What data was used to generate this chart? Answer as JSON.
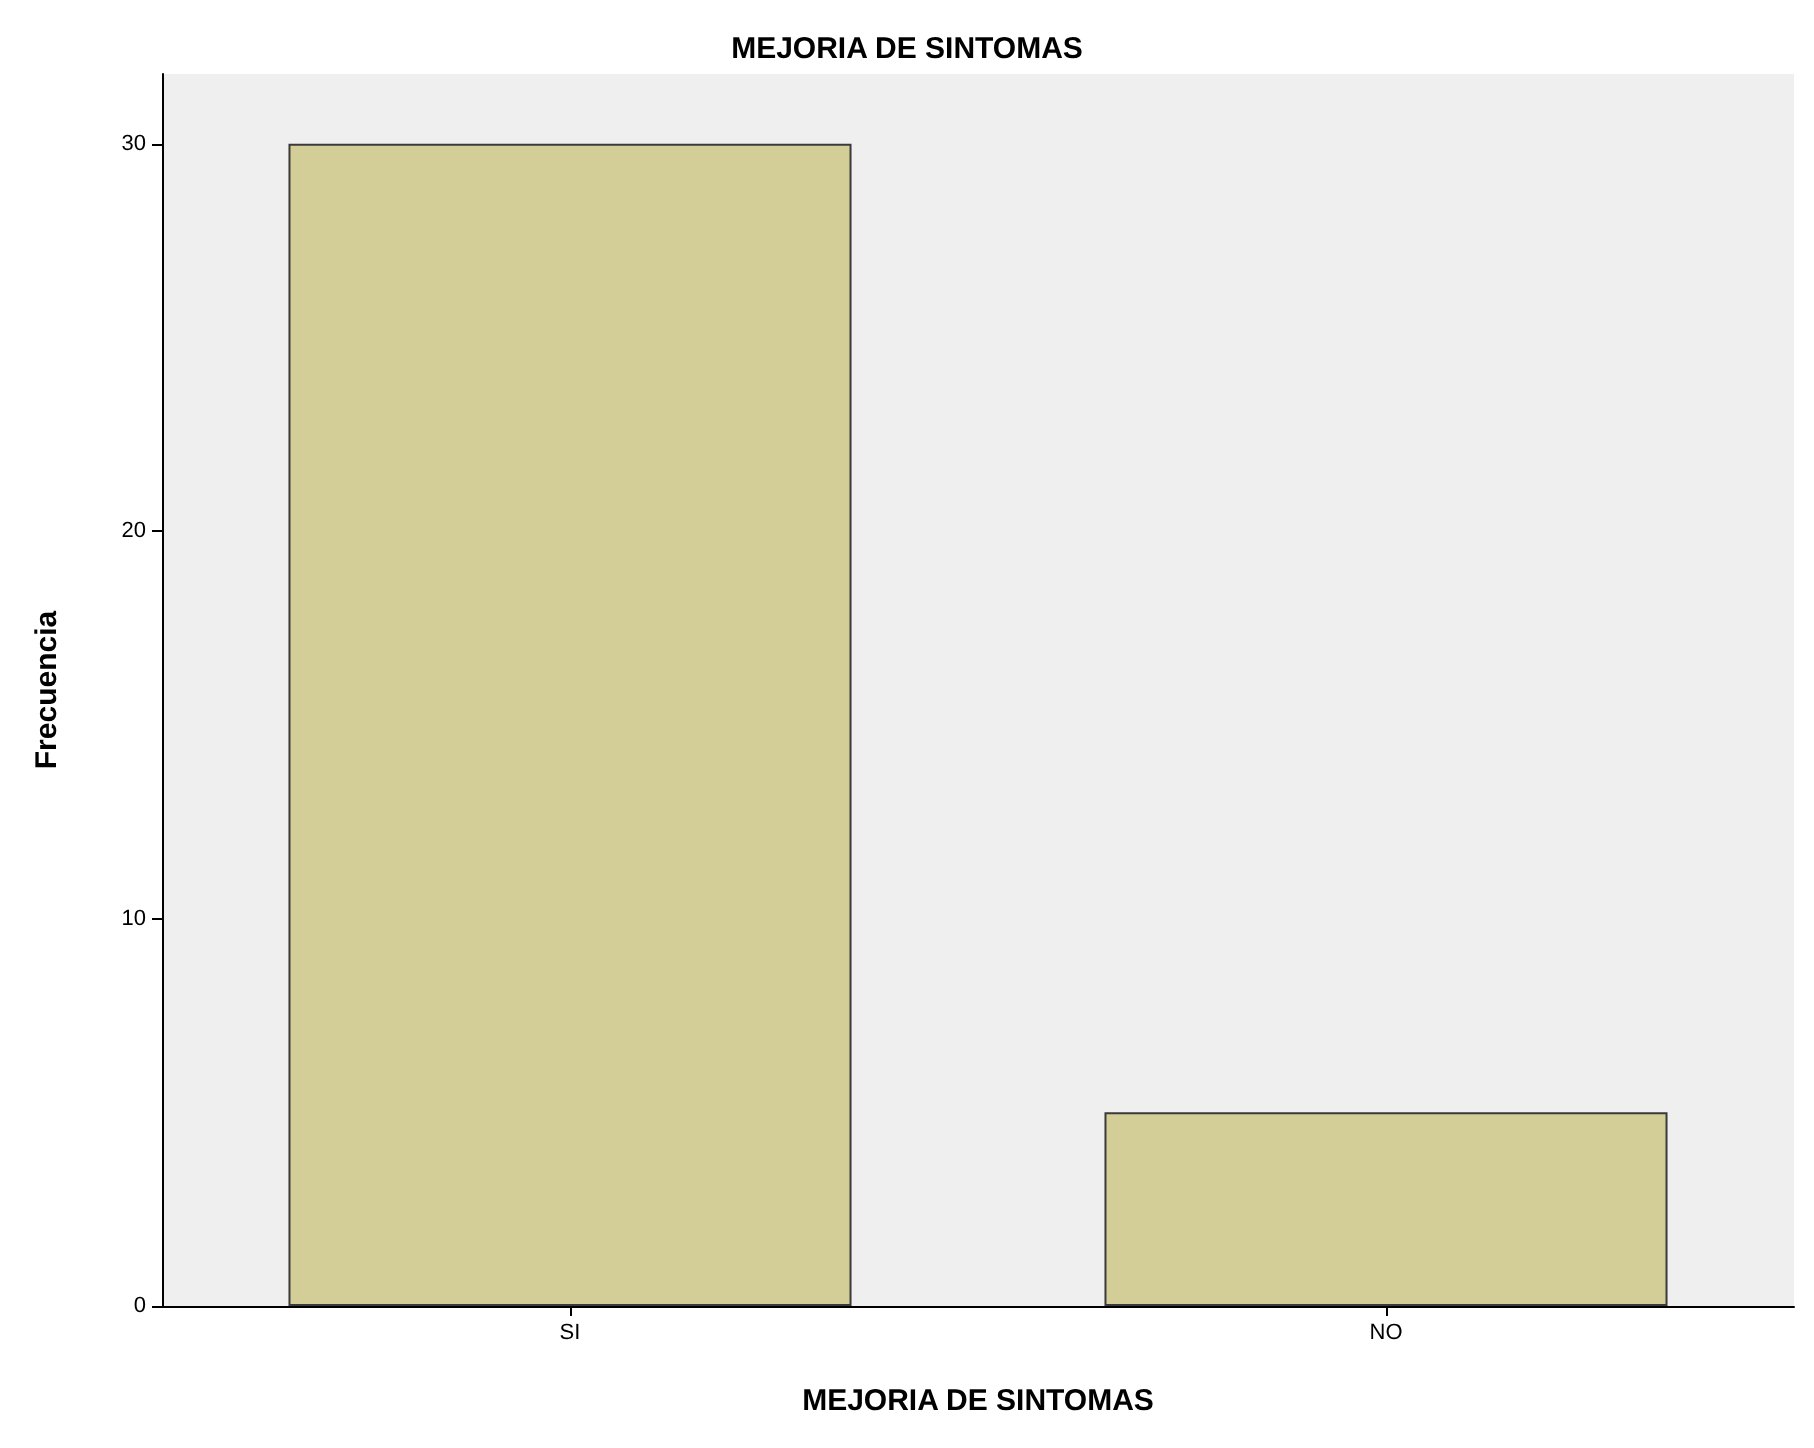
{
  "chart_data": {
    "type": "bar",
    "title": "MEJORIA DE SINTOMAS",
    "xlabel": "MEJORIA DE SINTOMAS",
    "ylabel": "Frecuencia",
    "categories": [
      "SI",
      "NO"
    ],
    "values": [
      30,
      5
    ],
    "color": "#d3cd98",
    "ylim": [
      0,
      31.8
    ],
    "yticks": [
      0,
      10,
      20,
      30
    ],
    "grid": false
  }
}
